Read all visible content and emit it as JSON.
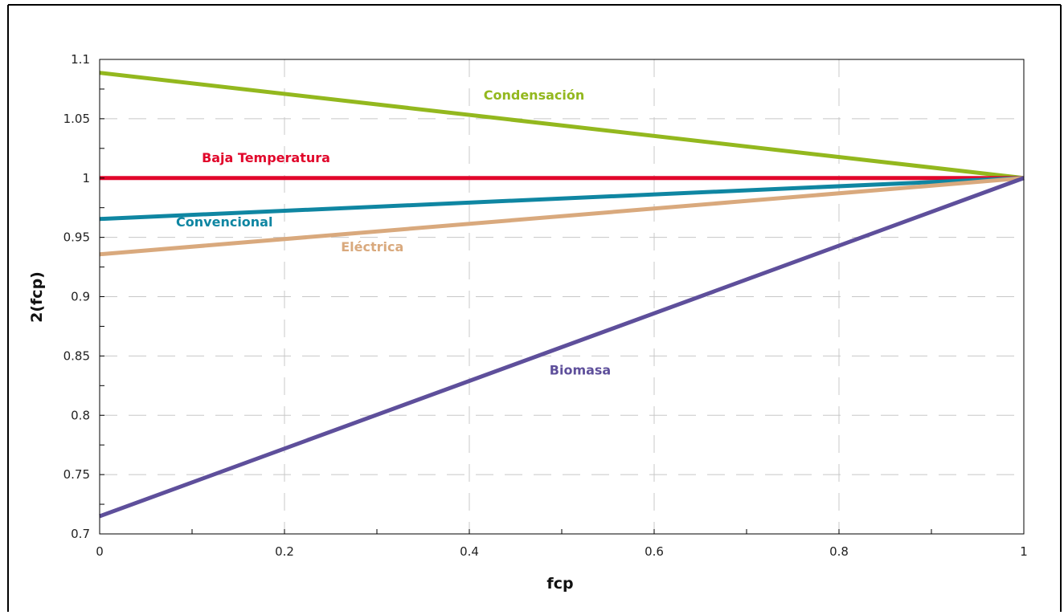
{
  "chart_data": {
    "type": "line",
    "title": "",
    "xlabel": "fcp",
    "ylabel": "2(fcp)",
    "xlim": [
      0,
      1
    ],
    "ylim": [
      0.7,
      1.1
    ],
    "x_ticks": [
      0,
      0.1,
      0.2,
      0.3,
      0.4,
      0.5,
      0.6,
      0.7,
      0.8,
      0.9,
      1
    ],
    "x_tick_labels": [
      "0",
      "",
      "0.2",
      "",
      "0.4",
      "",
      "0.6",
      "",
      "0.8",
      "",
      "1"
    ],
    "y_ticks": [
      0.7,
      0.725,
      0.75,
      0.775,
      0.8,
      0.825,
      0.85,
      0.875,
      0.9,
      0.925,
      0.95,
      0.975,
      1,
      1.025,
      1.05,
      1.075,
      1.1
    ],
    "y_tick_labels": [
      "0.7",
      "",
      "0.75",
      "",
      "0.8",
      "",
      "0.85",
      "",
      "0.9",
      "",
      "0.95",
      "",
      "1",
      "",
      "1.05",
      "",
      "1.1"
    ],
    "grid": "dashed",
    "series": [
      {
        "name": "Condensación",
        "color": "#93b81e",
        "x": [
          0,
          1
        ],
        "y": [
          1.0887,
          1.0
        ],
        "label_at": [
          0.47,
          1.0663
        ]
      },
      {
        "name": "Baja Temperatura",
        "color": "#e1072b",
        "x": [
          0,
          1
        ],
        "y": [
          1.0,
          1.0
        ],
        "label_at": [
          0.18,
          1.0133
        ]
      },
      {
        "name": "Convencional",
        "color": "#0f86a2",
        "x": [
          0,
          1
        ],
        "y": [
          0.9655,
          1.0
        ],
        "label_at": [
          0.135,
          0.9593
        ]
      },
      {
        "name": "Eléctrica",
        "color": "#d9a97d",
        "x": [
          0,
          1
        ],
        "y": [
          0.9357,
          1.0
        ],
        "label_at": [
          0.295,
          0.9383
        ]
      },
      {
        "name": "Biomasa",
        "color": "#5e4f9b",
        "x": [
          0,
          1
        ],
        "y": [
          0.7149,
          1.0
        ],
        "label_at": [
          0.52,
          0.8344
        ]
      }
    ]
  }
}
